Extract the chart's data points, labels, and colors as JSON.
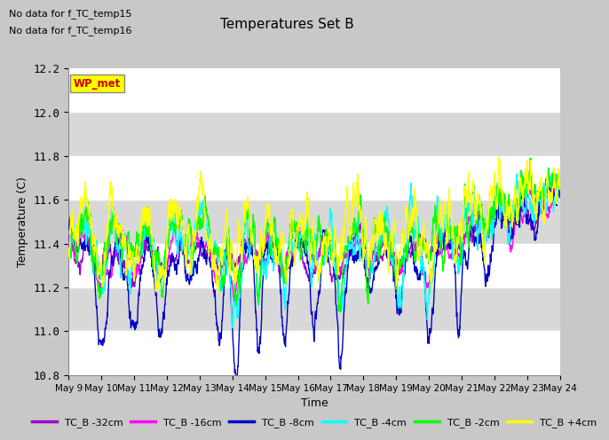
{
  "title": "Temperatures Set B",
  "xlabel": "Time",
  "ylabel": "Temperature (C)",
  "ylim": [
    10.8,
    12.2
  ],
  "yticks": [
    10.8,
    11.0,
    11.2,
    11.4,
    11.6,
    11.8,
    12.0,
    12.2
  ],
  "annotation_lines": [
    "No data for f_TC_temp15",
    "No data for f_TC_temp16"
  ],
  "wp_met_label": "WP_met",
  "wp_met_color": "#cc0000",
  "wp_met_bg": "#ffff00",
  "legend_entries": [
    "TC_B -32cm",
    "TC_B -16cm",
    "TC_B -8cm",
    "TC_B -4cm",
    "TC_B -2cm",
    "TC_B +4cm"
  ],
  "line_colors": [
    "#9900cc",
    "#ff00ff",
    "#0000cc",
    "#00ffff",
    "#00ff00",
    "#ffff00"
  ],
  "background_color": "#c8c8c8",
  "plot_bg": "#ffffff",
  "shaded_bg": "#d8d8d8",
  "n_points": 2160,
  "x_start_day": 9,
  "x_end_day": 24,
  "xtick_days": [
    9,
    10,
    11,
    12,
    13,
    14,
    15,
    16,
    17,
    18,
    19,
    20,
    21,
    22,
    23,
    24
  ],
  "xtick_labels": [
    "May 9",
    "May 10",
    "May 11",
    "May 12",
    "May 13",
    "May 14",
    "May 15",
    "May 16",
    "May 17",
    "May 18",
    "May 19",
    "May 20",
    "May 21",
    "May 22",
    "May 23",
    "May 24"
  ]
}
